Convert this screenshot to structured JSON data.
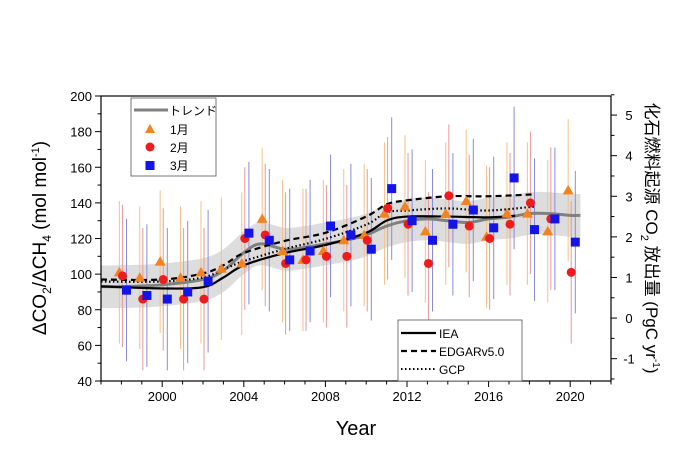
{
  "chart_data": {
    "type": "scatter",
    "xlabel": "Year",
    "ylabel_left": {
      "main": "ΔCO",
      "sub1": "2",
      "mid": "/ΔCH",
      "sub2": "4",
      "unit": " (mol mol",
      "sup": "-1",
      "close": ")"
    },
    "ylabel_right": {
      "main": "化石燃料起源 CO",
      "sub": "2",
      "mid": " 放出量 (PgC yr",
      "sup": "-1",
      "close": ")"
    },
    "xlim": [
      1997,
      2022
    ],
    "ylim_left": [
      40,
      200
    ],
    "ylim_right": [
      -1.55,
      5.47
    ],
    "x_ticks": [
      2000,
      2004,
      2008,
      2012,
      2016,
      2020
    ],
    "y_left_ticks": [
      40,
      60,
      80,
      100,
      120,
      140,
      160,
      180,
      200
    ],
    "y_right_ticks": [
      -1,
      0,
      1,
      2,
      3,
      4,
      5
    ],
    "grid": false,
    "legend_top": {
      "placement": "top-left",
      "entries": [
        "トレンド",
        "1月",
        "2月",
        "3月"
      ]
    },
    "legend_bottom": {
      "placement": "bottom-right",
      "entries": [
        "IEA",
        "EDGARv5.0",
        "GCP"
      ]
    },
    "colors": {
      "jan": "#f58220",
      "feb": "#ee1c1c",
      "mar": "#1414e6",
      "trend": "#808080",
      "band": "#d9d9d9"
    },
    "error_half_width": 40,
    "years": [
      1998,
      1999,
      2000,
      2001,
      2002,
      2003,
      2004,
      2005,
      2006,
      2007,
      2008,
      2009,
      2010,
      2011,
      2012,
      2013,
      2014,
      2015,
      2016,
      2017,
      2018,
      2019,
      2020
    ],
    "series": [
      {
        "name": "1月",
        "axis": "left",
        "marker": "triangle",
        "values": [
          101,
          98,
          107,
          98,
          101,
          103,
          106,
          131,
          113,
          108,
          113,
          119,
          122,
          134,
          138,
          124,
          134,
          141,
          121,
          134,
          134,
          124,
          147
        ]
      },
      {
        "name": "2月",
        "axis": "left",
        "marker": "circle",
        "values": [
          99,
          86,
          97,
          86,
          86,
          null,
          120,
          122,
          106,
          108,
          110,
          110,
          119,
          137,
          128,
          106,
          144,
          127,
          120,
          128,
          140,
          131,
          101
        ]
      },
      {
        "name": "3月",
        "axis": "left",
        "marker": "square",
        "values": [
          91,
          88,
          86,
          90,
          96,
          null,
          123,
          119,
          108,
          113,
          127,
          122,
          114,
          148,
          130,
          119,
          128,
          136,
          126,
          154,
          125,
          131,
          118
        ]
      },
      {
        "name": "トレンド",
        "axis": "left",
        "line": "solid-gray",
        "x": [
          1997,
          1998,
          2000,
          2002,
          2003,
          2004,
          2004.8,
          2006,
          2007,
          2008,
          2009,
          2010,
          2011,
          2012,
          2013,
          2014,
          2015,
          2016,
          2017,
          2018,
          2019,
          2020,
          2020.5
        ],
        "values": [
          93,
          93,
          94,
          97,
          102,
          112,
          117,
          114,
          115,
          117,
          119,
          122,
          127,
          130,
          131,
          130,
          129,
          131,
          132,
          134,
          134,
          133,
          133
        ],
        "band": 12
      },
      {
        "name": "IEA",
        "axis": "right",
        "line": "solid",
        "x": [
          1997,
          2000,
          2002,
          2003,
          2004,
          2006,
          2008,
          2010,
          2011,
          2012,
          2014,
          2016,
          2017.3
        ],
        "values": [
          0.78,
          0.73,
          0.76,
          1.0,
          1.3,
          1.6,
          1.8,
          2.1,
          2.4,
          2.5,
          2.5,
          2.48,
          2.52
        ]
      },
      {
        "name": "EDGARv5.0",
        "axis": "right",
        "line": "dashed",
        "x": [
          1997,
          2000,
          2002,
          2003,
          2004,
          2006,
          2008,
          2010,
          2011,
          2012,
          2014,
          2016,
          2018.3
        ],
        "values": [
          0.95,
          0.95,
          1.1,
          1.3,
          1.6,
          1.9,
          2.1,
          2.5,
          2.8,
          2.9,
          3.0,
          3.0,
          3.05
        ]
      },
      {
        "name": "GCP",
        "axis": "right",
        "line": "dotted",
        "x": [
          1997,
          2000,
          2002,
          2003,
          2004,
          2006,
          2008,
          2010,
          2011,
          2012,
          2014,
          2016,
          2018.3
        ],
        "values": [
          0.9,
          0.9,
          1.0,
          1.2,
          1.4,
          1.7,
          1.95,
          2.3,
          2.6,
          2.65,
          2.7,
          2.65,
          2.75
        ]
      }
    ]
  }
}
